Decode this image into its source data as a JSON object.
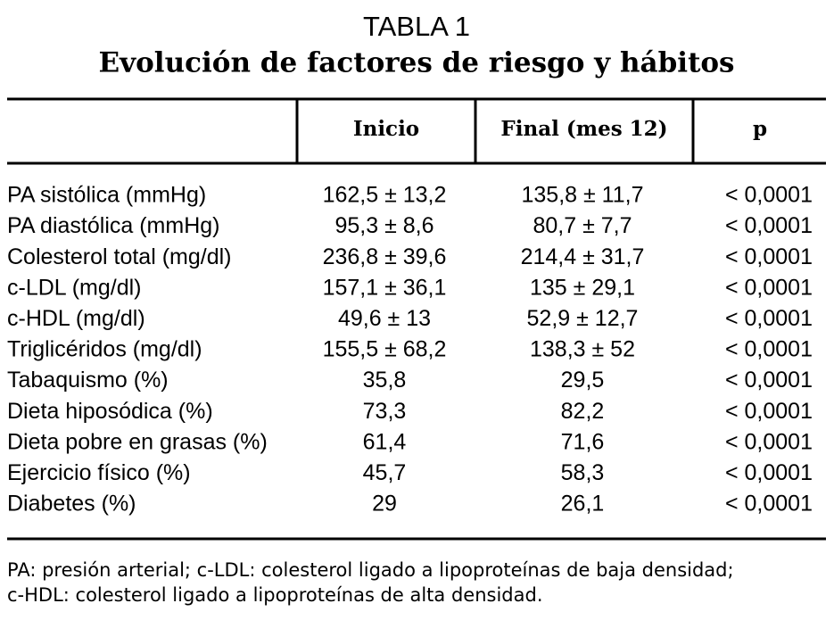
{
  "header": {
    "title": "TABLA 1",
    "subtitle": "Evolución de factores de riesgo y hábitos"
  },
  "table": {
    "columns": [
      "Inicio",
      "Final (mes 12)",
      "p"
    ],
    "rows": [
      [
        "PA sistólica (mmHg)",
        "162,5 ± 13,2",
        "135,8 ± 11,7",
        "< 0,0001"
      ],
      [
        "PA diastólica (mmHg)",
        "95,3 ± 8,6",
        "80,7 ± 7,7",
        "< 0,0001"
      ],
      [
        "Colesterol total (mg/dl)",
        "236,8 ± 39,6",
        "214,4 ± 31,7",
        "< 0,0001"
      ],
      [
        "c-LDL (mg/dl)",
        "157,1 ± 36,1",
        "135 ± 29,1",
        "< 0,0001"
      ],
      [
        "c-HDL (mg/dl)",
        "49,6 ± 13",
        "52,9 ± 12,7",
        "< 0,0001"
      ],
      [
        "Triglicéridos (mg/dl)",
        "155,5 ± 68,2",
        "138,3 ± 52",
        "< 0,0001"
      ],
      [
        "Tabaquismo (%)",
        "35,8",
        "29,5",
        "< 0,0001"
      ],
      [
        "Dieta hiposódica (%)",
        "73,3",
        "82,2",
        "< 0,0001"
      ],
      [
        "Dieta pobre en grasas (%)",
        "61,4",
        "71,6",
        "< 0,0001"
      ],
      [
        "Ejercicio físico (%)",
        "45,7",
        "58,3",
        "< 0,0001"
      ],
      [
        "Diabetes (%)",
        "29",
        "26,1",
        "< 0,0001"
      ]
    ]
  },
  "footnote": [
    "PA: presión arterial; c-LDL: colesterol ligado a lipoproteínas de baja densidad;",
    "c-HDL: colesterol ligado a lipoproteínas de alta densidad."
  ]
}
